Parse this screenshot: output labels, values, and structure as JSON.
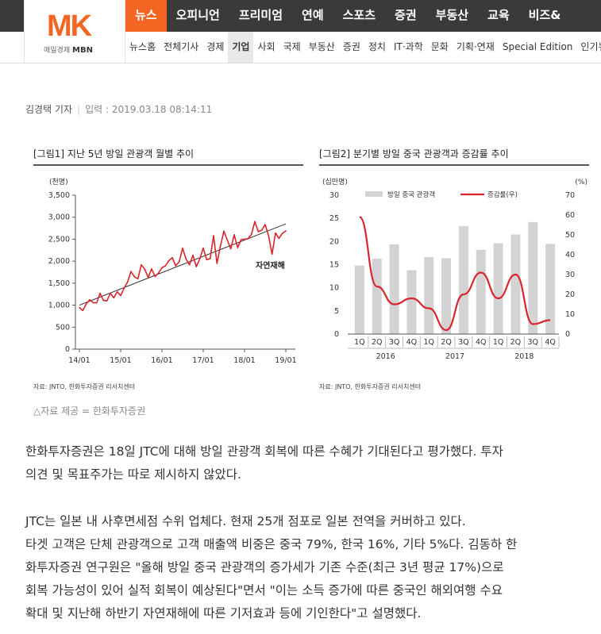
{
  "header": {
    "logo_mark": "MK",
    "logo_sub_1": "매일경제",
    "logo_sub_2": "MBN",
    "main_nav": [
      "뉴스",
      "오피니언",
      "프리미엄",
      "연예",
      "스포츠",
      "증권",
      "부동산",
      "교육",
      "비즈&"
    ],
    "sub_nav": [
      "뉴스홈",
      "전체기사",
      "경제",
      "기업",
      "사회",
      "국제",
      "부동산",
      "증권",
      "정치",
      "IT·과학",
      "문화",
      "기획·연재",
      "Special Edition",
      "인기뉴스"
    ],
    "active_main": "뉴스",
    "active_sub": "기업",
    "accent_color": "#f26522"
  },
  "byline": {
    "reporter": "김경택 기자",
    "date_label": "입력 : 2019.03.18 08:14:11"
  },
  "figure1": {
    "title": "[그림1]   지난 5년 방일 관광객 월별 추이",
    "source": "자료: JNTO, 한화투자증권 리서치센터"
  },
  "figure2": {
    "title": "[그림2]   분기별 방일 중국 관광객과 증감률 추이",
    "source": "자료: JNTO, 한화투자증권 리서치센터"
  },
  "chart_data": [
    {
      "type": "line",
      "ylabel": "(천명)",
      "ylim": [
        0,
        3500
      ],
      "yticks": [
        "3,500",
        "3,000",
        "2,500",
        "2,000",
        "1,500",
        "1,000",
        "500",
        "0"
      ],
      "xticks": [
        "14/01",
        "15/01",
        "16/01",
        "17/01",
        "18/01",
        "19/01"
      ],
      "annotation": "자연재해",
      "line_color": "#d9252b",
      "trend_color": "#333333",
      "series": [
        {
          "values": [
            943,
            880,
            1031,
            1123,
            1055,
            1051,
            1271,
            1108,
            1098,
            1271,
            1168,
            1305,
            1218,
            1386,
            1529,
            1764,
            1645,
            1601,
            1918,
            1817,
            1630,
            1824,
            1649,
            1733,
            1851,
            1893,
            2010,
            2081,
            1896,
            1986,
            2296,
            2049,
            1918,
            2136,
            1877,
            2053,
            2296,
            2035,
            2057,
            2579,
            1950,
            2346,
            2682,
            2478,
            2280,
            2601,
            2306,
            2489,
            2501,
            2509,
            2608,
            2901,
            2672,
            2704,
            2832,
            2578,
            2160,
            2641,
            2519,
            2632,
            2689
          ]
        }
      ],
      "trend": {
        "start": 1000,
        "end": 2850
      }
    },
    {
      "type": "bar",
      "ylabel_left": "(십만명)",
      "ylabel_right": "(%)",
      "ylim_left": [
        0,
        30
      ],
      "ylim_right": [
        0,
        70
      ],
      "yticks_left": [
        "30",
        "25",
        "20",
        "15",
        "10",
        "5",
        "0"
      ],
      "yticks_right": [
        "70",
        "60",
        "50",
        "40",
        "30",
        "20",
        "10",
        "0"
      ],
      "categories": [
        "1Q",
        "2Q",
        "3Q",
        "4Q",
        "1Q",
        "2Q",
        "3Q",
        "4Q",
        "1Q",
        "2Q",
        "3Q",
        "4Q"
      ],
      "years": [
        "2016",
        "2017",
        "2018"
      ],
      "bar_color": "#d3d3d3",
      "line_color": "#d9252b",
      "series": [
        {
          "name": "방일 중국 관광객",
          "axis": "left",
          "values": [
            14.8,
            16.3,
            19.4,
            13.8,
            16.6,
            16.4,
            23.3,
            18.2,
            19.6,
            21.5,
            24.2,
            19.5
          ]
        },
        {
          "name": "증감률(우)",
          "axis": "right",
          "values": [
            59,
            24,
            15,
            18,
            13,
            2,
            20,
            31,
            18,
            30,
            5,
            7
          ]
        }
      ]
    }
  ],
  "caption": "△자료 제공 = 한화투자증권",
  "article": {
    "p1_l1": "한화투자증권은 18일 JTC에 대해 방일 관광객 회복에 따른 수혜가 기대된다고 평가했다. 투자",
    "p1_l2": "의견 및 목표주가는 따로 제시하지 않았다.",
    "p2_l1": "JTC는 일본 내 사후면세점 수위 업체다. 현재 25개 점포로 일본 전역을 커버하고 있다.",
    "p2_l2": "타겟 고객은 단체 관광객으로 고객 매출액 비중은 중국 79%, 한국 16%, 기타 5%다. 김동하 한",
    "p2_l3": "화투자증권 연구원은 \"올해 방일 중국 관광객의 증가세가 기존 수준(최근 3년 평균 17%)으로",
    "p2_l4": "회복 가능성이 있어 실적 회복이 예상된다\"면서 \"이는 소득 증가에 따른 중국인 해외여행 수요",
    "p2_l5": "확대 및 지난해 하반기 자연재해에 따른 기저효과 등에 기인한다\"고 설명했다."
  }
}
